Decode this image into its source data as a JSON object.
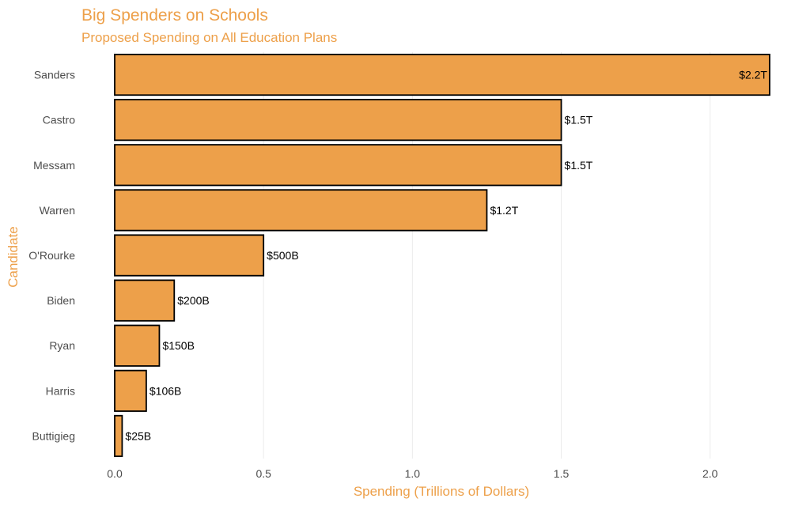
{
  "chart_data": {
    "type": "bar",
    "orientation": "horizontal",
    "title": "Big Spenders on Schools",
    "subtitle": "Proposed Spending on All Education Plans",
    "xlabel": "Spending (Trillions of Dollars)",
    "ylabel": "Candidate",
    "xlim": [
      0,
      2.2
    ],
    "xticks": [
      "0.0",
      "0.5",
      "1.0",
      "1.5",
      "2.0"
    ],
    "xtick_values": [
      0,
      0.5,
      1.0,
      1.5,
      2.0
    ],
    "grid": true,
    "bar_color": "#eda04a",
    "title_color": "#eda04a",
    "categories": [
      "Sanders",
      "Castro",
      "Messam",
      "Warren",
      "O'Rourke",
      "Biden",
      "Ryan",
      "Harris",
      "Buttigieg"
    ],
    "values": [
      2.2,
      1.5,
      1.5,
      1.25,
      0.5,
      0.2,
      0.15,
      0.106,
      0.025
    ],
    "data_labels": [
      "$2.2T",
      "$1.5T",
      "$1.5T",
      "$1.2T",
      "$500B",
      "$200B",
      "$150B",
      "$106B",
      "$25B"
    ]
  }
}
